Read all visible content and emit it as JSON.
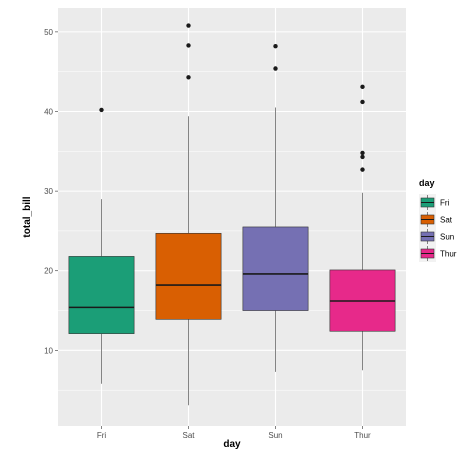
{
  "chart_data": {
    "type": "boxplot",
    "xlabel": "day",
    "ylabel": "total_bill",
    "categories": [
      "Fri",
      "Sat",
      "Sun",
      "Thur"
    ],
    "ylim": [
      0.5,
      53
    ],
    "y_ticks": [
      10,
      20,
      30,
      40,
      50
    ],
    "y_tick_labels": [
      "10",
      "20",
      "30",
      "40",
      "50"
    ],
    "background": "#ebebeb",
    "gridline_color": "#ffffff",
    "box_outline_color": "#333333",
    "grid": true,
    "legend": {
      "title": "day",
      "placement": "right",
      "entries": [
        "Fri",
        "Sat",
        "Sun",
        "Thur"
      ]
    },
    "boxes": [
      {
        "category": "Fri",
        "color": "#1b9e77",
        "whisker_low": 5.8,
        "q1": 12.1,
        "median": 15.4,
        "q3": 21.8,
        "whisker_high": 29.0,
        "outliers": [
          40.2
        ]
      },
      {
        "category": "Sat",
        "color": "#d95f02",
        "whisker_low": 3.1,
        "q1": 13.9,
        "median": 18.2,
        "q3": 24.7,
        "whisker_high": 39.4,
        "outliers": [
          44.3,
          48.3,
          50.8
        ]
      },
      {
        "category": "Sun",
        "color": "#7570b3",
        "whisker_low": 7.3,
        "q1": 15.0,
        "median": 19.6,
        "q3": 25.5,
        "whisker_high": 40.5,
        "outliers": [
          45.4,
          48.2
        ]
      },
      {
        "category": "Thur",
        "color": "#e7298a",
        "whisker_low": 7.5,
        "q1": 12.4,
        "median": 16.2,
        "q3": 20.1,
        "whisker_high": 29.8,
        "outliers": [
          32.7,
          34.3,
          34.8,
          41.2,
          43.1
        ]
      }
    ]
  }
}
